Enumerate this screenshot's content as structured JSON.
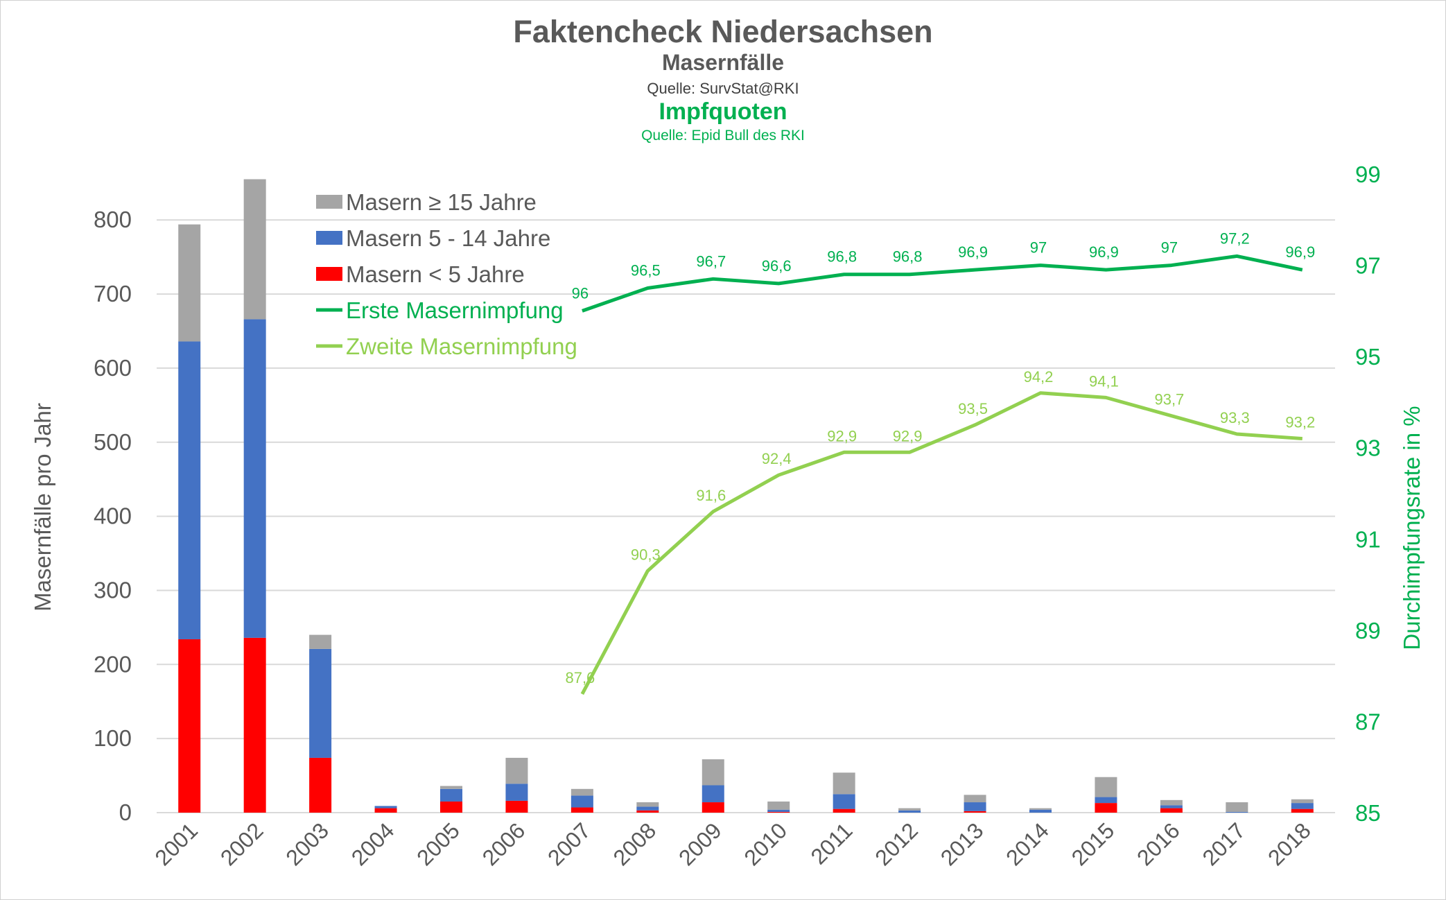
{
  "chart_data": {
    "type": "bar+line",
    "title": "Faktencheck Niedersachsen",
    "subtitles": [
      {
        "text": "Masernfälle",
        "color": "#595959",
        "bold": true
      },
      {
        "text": "Quelle: SurvStat@RKI",
        "color": "#404040",
        "bold": false
      },
      {
        "text": "Impfquoten",
        "color": "#00B050",
        "bold": true
      },
      {
        "text": "Quelle: Epid Bull des RKI",
        "color": "#00B050",
        "bold": false
      }
    ],
    "ylabel": "Masernfälle pro Jahr",
    "y2label": "Durchimpfungsrate in %",
    "ylim": [
      0,
      862
    ],
    "yticks": [
      0,
      100,
      200,
      300,
      400,
      500,
      600,
      700,
      800
    ],
    "y2lim": [
      85,
      99
    ],
    "y2ticks": [
      85,
      87,
      89,
      91,
      93,
      95,
      97,
      99
    ],
    "grid": true,
    "legend_position": "top-left",
    "categories": [
      "2001",
      "2002",
      "2003",
      "2004",
      "2005",
      "2006",
      "2007",
      "2008",
      "2009",
      "2010",
      "2011",
      "2012",
      "2013",
      "2014",
      "2015",
      "2016",
      "2017",
      "2018"
    ],
    "bar_series": [
      {
        "name": "Masern < 5 Jahre",
        "color": "#FF0000",
        "values": [
          234,
          236,
          74,
          6,
          15,
          16,
          7,
          3,
          14,
          1,
          5,
          0,
          2,
          0,
          13,
          6,
          0,
          5
        ]
      },
      {
        "name": "Masern 5 - 14 Jahre",
        "color": "#4472C4",
        "values": [
          402,
          430,
          147,
          3,
          17,
          23,
          16,
          5,
          23,
          3,
          20,
          3,
          12,
          4,
          8,
          4,
          1,
          8
        ]
      },
      {
        "name": "Masern ≥ 15 Jahre",
        "color": "#A5A5A5",
        "values": [
          158,
          189,
          19,
          0,
          4,
          35,
          9,
          6,
          35,
          11,
          29,
          3,
          10,
          2,
          27,
          7,
          13,
          5
        ]
      }
    ],
    "line_series": [
      {
        "name": "Erste Masernimpfung",
        "color": "#00B050",
        "start": "2007",
        "values": [
          96,
          96.5,
          96.7,
          96.6,
          96.8,
          96.8,
          96.9,
          97,
          96.9,
          97,
          97.2,
          96.9
        ],
        "labels": [
          "96",
          "96,5",
          "96,7",
          "96,6",
          "96,8",
          "96,8",
          "96,9",
          "97",
          "96,9",
          "97",
          "97,2",
          "96,9"
        ]
      },
      {
        "name": "Zweite Masernimpfung",
        "color": "#92D050",
        "start": "2007",
        "values": [
          87.6,
          90.3,
          91.6,
          92.4,
          92.9,
          92.9,
          93.5,
          94.2,
          94.1,
          93.7,
          93.3,
          93.2
        ],
        "labels": [
          "87,6",
          "90,3",
          "91,6",
          "92,4",
          "92,9",
          "92,9",
          "93,5",
          "94,2",
          "94,1",
          "93,7",
          "93,3",
          "93,2"
        ]
      }
    ]
  }
}
